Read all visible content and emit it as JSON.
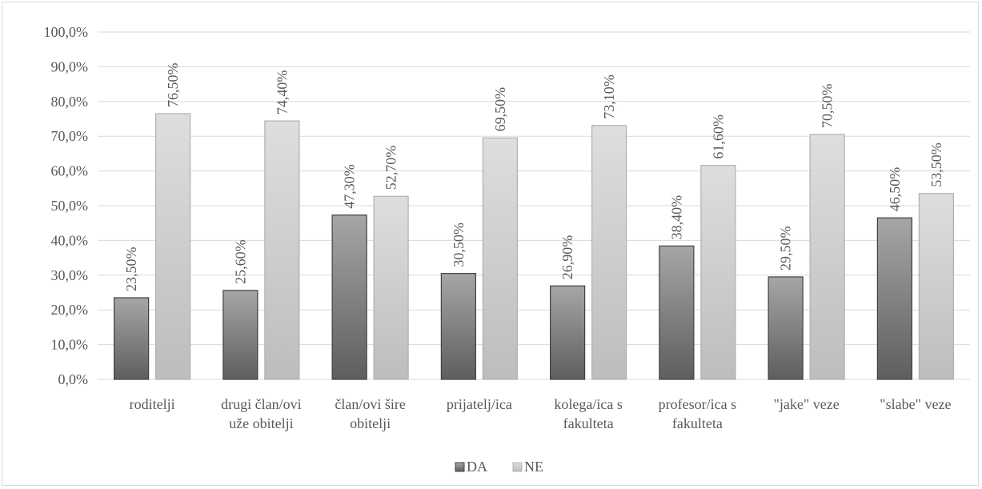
{
  "chart_data": {
    "type": "bar",
    "categories": [
      [
        "roditelji"
      ],
      [
        "drugi član/ovi",
        "uže obitelji"
      ],
      [
        "član/ovi šire",
        "obitelji"
      ],
      [
        "prijatelj/ica"
      ],
      [
        "kolega/ica s",
        "fakulteta"
      ],
      [
        "profesor/ica s",
        "fakulteta"
      ],
      [
        "\"jake\" veze"
      ],
      [
        "\"slabe\" veze"
      ]
    ],
    "series": [
      {
        "name": "DA",
        "values": [
          23.5,
          25.6,
          47.3,
          30.5,
          26.9,
          38.4,
          29.5,
          46.5
        ],
        "labels": [
          "23,50%",
          "25,60%",
          "47,30%",
          "30,50%",
          "26,90%",
          "38,40%",
          "29,50%",
          "46,50%"
        ]
      },
      {
        "name": "NE",
        "values": [
          76.5,
          74.4,
          52.7,
          69.5,
          73.1,
          61.6,
          70.5,
          53.5
        ],
        "labels": [
          "76,50%",
          "74,40%",
          "52,70%",
          "69,50%",
          "73,10%",
          "61,60%",
          "70,50%",
          "53,50%"
        ]
      }
    ],
    "ylim": [
      0,
      100
    ],
    "yticks": [
      "0,0%",
      "10,0%",
      "20,0%",
      "30,0%",
      "40,0%",
      "50,0%",
      "60,0%",
      "70,0%",
      "80,0%",
      "90,0%",
      "100,0%"
    ],
    "grid": true,
    "legend": "bottom",
    "colors": {
      "DA": "#8c8c8c",
      "DA_dark": "#5e5e5e",
      "DA_light": "#a6a6a6",
      "DA_border": "#404040",
      "NE": "#d0d0d0",
      "NE_dark": "#bdbdbd",
      "NE_light": "#dedede",
      "NE_border": "#b0b0b0",
      "grid": "#d9d9d9",
      "text": "#595959"
    }
  }
}
